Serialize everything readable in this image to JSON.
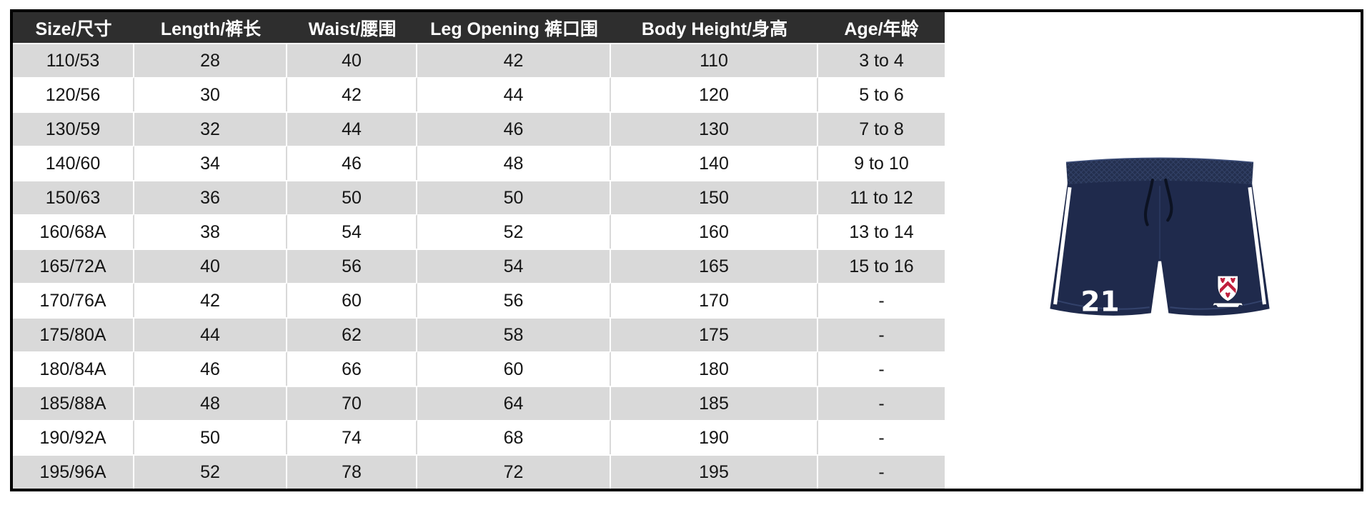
{
  "chart_data": {
    "type": "table",
    "columns": [
      "Size/尺寸",
      "Length/裤长",
      "Waist/腰围",
      "Leg Opening 裤口围",
      "Body Height/身高",
      "Age/年龄"
    ],
    "rows": [
      [
        "110/53",
        "28",
        "40",
        "42",
        "110",
        "3 to 4"
      ],
      [
        "120/56",
        "30",
        "42",
        "44",
        "120",
        "5 to 6"
      ],
      [
        "130/59",
        "32",
        "44",
        "46",
        "130",
        "7 to 8"
      ],
      [
        "140/60",
        "34",
        "46",
        "48",
        "140",
        "9 to 10"
      ],
      [
        "150/63",
        "36",
        "50",
        "50",
        "150",
        "11 to 12"
      ],
      [
        "160/68A",
        "38",
        "54",
        "52",
        "160",
        "13 to 14"
      ],
      [
        "165/72A",
        "40",
        "56",
        "54",
        "165",
        "15 to 16"
      ],
      [
        "170/76A",
        "42",
        "60",
        "56",
        "170",
        "-"
      ],
      [
        "175/80A",
        "44",
        "62",
        "58",
        "175",
        "-"
      ],
      [
        "180/84A",
        "46",
        "66",
        "60",
        "180",
        "-"
      ],
      [
        "185/88A",
        "48",
        "70",
        "64",
        "185",
        "-"
      ],
      [
        "190/92A",
        "50",
        "74",
        "68",
        "190",
        "-"
      ],
      [
        "195/96A",
        "52",
        "78",
        "72",
        "195",
        "-"
      ]
    ],
    "layout_hints": {
      "header_position": "top",
      "zebra_striping": "odd data rows gray, even data rows white",
      "cell_alignment": "center",
      "grid": "white separators on gray rows, gray separators on white rows"
    }
  },
  "product": {
    "number": "21"
  },
  "colors": {
    "frame_border": "#000000",
    "header_bg": "#2e2e2e",
    "header_text": "#ffffff",
    "row_gray": "#d9d9d9",
    "row_white": "#ffffff",
    "cell_text": "#151515",
    "shorts_navy": "#1f2a4c",
    "waistband_texture": "#3c4d78",
    "side_stripe": "#ffffff",
    "drawstring": "#0c1222",
    "crest_shield": "#ffffff",
    "crest_red": "#bf1f3c",
    "crest_outline": "#1c2742"
  }
}
